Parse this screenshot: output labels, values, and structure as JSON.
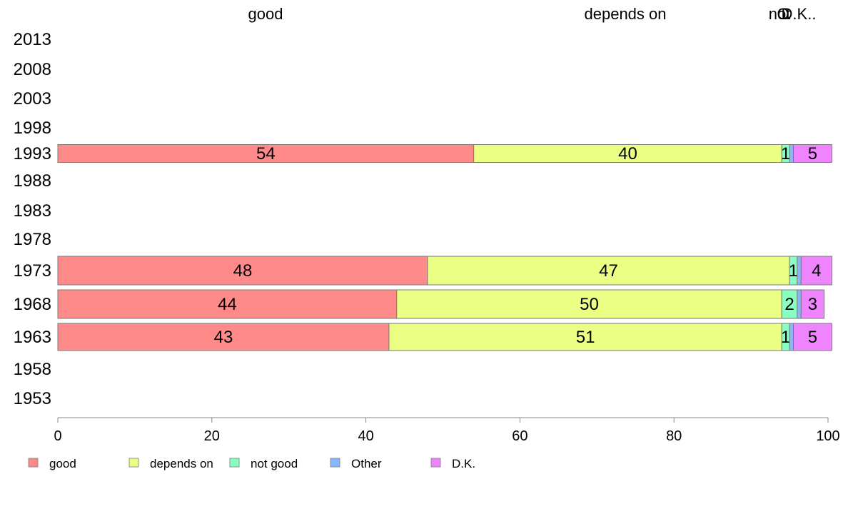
{
  "chart_data": {
    "type": "bar",
    "orientation": "horizontal",
    "stacked": true,
    "categories": [
      "2013",
      "2008",
      "2003",
      "1998",
      "1993",
      "1988",
      "1983",
      "1978",
      "1973",
      "1968",
      "1963",
      "1958",
      "1953"
    ],
    "series": [
      {
        "name": "good",
        "color": "#FF8A8A",
        "values": [
          null,
          null,
          null,
          null,
          54,
          null,
          null,
          null,
          48,
          44,
          43,
          null,
          null
        ]
      },
      {
        "name": "depends on",
        "color": "#ECFF85",
        "values": [
          null,
          null,
          null,
          null,
          40,
          null,
          null,
          null,
          47,
          50,
          51,
          null,
          null
        ]
      },
      {
        "name": "not good",
        "color": "#8AFFC2",
        "values": [
          null,
          null,
          null,
          null,
          1,
          null,
          null,
          null,
          1,
          2,
          1,
          null,
          null
        ]
      },
      {
        "name": "Other",
        "color": "#8AB8FF",
        "values": [
          null,
          null,
          null,
          null,
          0.5,
          null,
          null,
          null,
          0.5,
          0.5,
          0.5,
          null,
          null
        ]
      },
      {
        "name": "D.K.",
        "color": "#EE85FF",
        "values": [
          null,
          null,
          null,
          null,
          5,
          null,
          null,
          null,
          4,
          3,
          5,
          null,
          null
        ]
      }
    ],
    "data_labels": {
      "1993": [
        "54",
        "40",
        "1",
        "",
        "5"
      ],
      "1973": [
        "48",
        "47",
        "1",
        "",
        "4"
      ],
      "1968": [
        "44",
        "50",
        "2",
        "",
        "3"
      ],
      "1963": [
        "43",
        "51",
        "1",
        "",
        "5"
      ]
    },
    "top_labels": [
      "good",
      "depends on",
      "not",
      "O",
      "D.K.."
    ],
    "x_ticks": [
      0,
      20,
      40,
      60,
      80,
      100
    ],
    "xlim": [
      0,
      100
    ],
    "legend_position": "bottom",
    "legend": [
      "good",
      "depends on",
      "not good",
      "Other",
      "D.K."
    ],
    "bar_outline_color": "#7a7a7a",
    "axis_color": "#888888"
  }
}
